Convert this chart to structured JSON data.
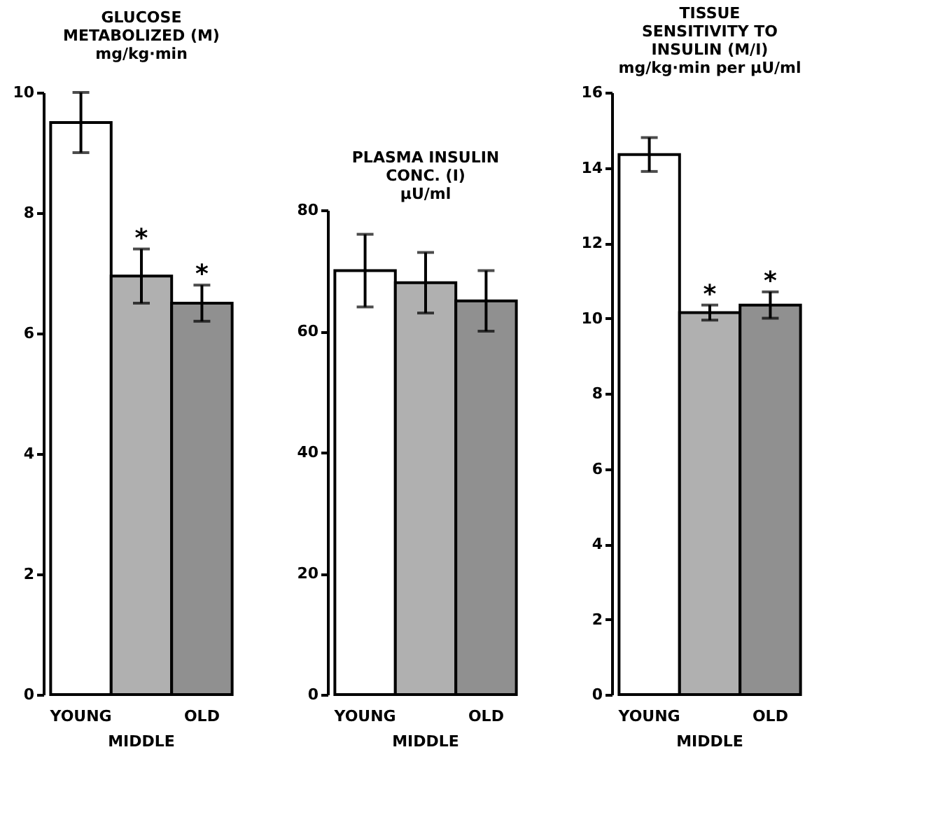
{
  "chart_data": [
    {
      "type": "bar",
      "title": "GLUCOSE\nMETABOLIZED (M)\nmg/kg·min",
      "categories": [
        "YOUNG",
        "MIDDLE",
        "OLD"
      ],
      "values": [
        9.5,
        6.95,
        6.5
      ],
      "errors": [
        0.5,
        0.45,
        0.3
      ],
      "value_labels": [
        null,
        "*",
        "*"
      ],
      "colors": [
        "#ffffff",
        "#b0b0b0",
        "#909090"
      ],
      "ylim": [
        0,
        10
      ],
      "yticks": [
        0,
        2,
        4,
        6,
        8,
        10
      ],
      "grid": false
    },
    {
      "type": "bar",
      "title": "PLASMA INSULIN\nCONC. (I)\nμU/ml",
      "categories": [
        "YOUNG",
        "MIDDLE",
        "OLD"
      ],
      "values": [
        70,
        68,
        65
      ],
      "errors": [
        6,
        5,
        5
      ],
      "colors": [
        "#ffffff",
        "#b0b0b0",
        "#909090"
      ],
      "ylim": [
        0,
        80
      ],
      "yticks": [
        0,
        20,
        40,
        60,
        80
      ],
      "grid": false
    },
    {
      "type": "bar",
      "title": "TISSUE\nSENSITIVITY TO\nINSULIN (M/I)\nmg/kg·min per μU/ml",
      "categories": [
        "YOUNG",
        "MIDDLE",
        "OLD"
      ],
      "values": [
        14.35,
        10.15,
        10.35
      ],
      "errors": [
        0.45,
        0.2,
        0.35
      ],
      "value_labels": [
        null,
        "*",
        "*"
      ],
      "colors": [
        "#ffffff",
        "#b0b0b0",
        "#909090"
      ],
      "ylim": [
        0,
        16
      ],
      "yticks": [
        0,
        2,
        4,
        6,
        8,
        10,
        12,
        14,
        16
      ],
      "grid": false
    }
  ]
}
